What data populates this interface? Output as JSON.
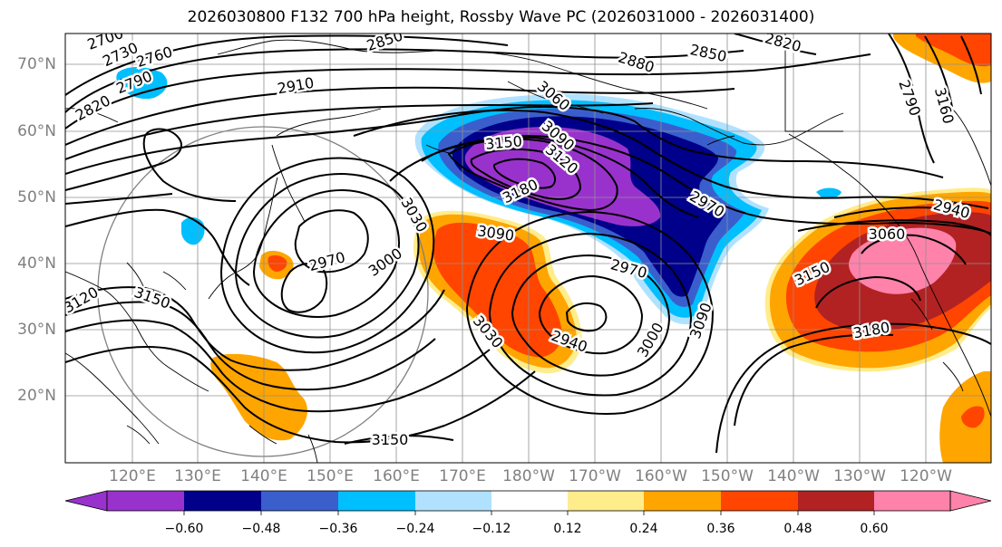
{
  "title": "2026030800 F132 700 hPa height, Rossby Wave PC (2026031000 - 2026031400)",
  "lat_labels": [
    "70°N",
    "60°N",
    "50°N",
    "40°N",
    "30°N",
    "20°N"
  ],
  "lon_labels": [
    "120°E",
    "130°E",
    "140°E",
    "150°E",
    "160°E",
    "170°E",
    "180°W",
    "170°W",
    "160°W",
    "150°W",
    "140°W",
    "130°W",
    "120°W"
  ],
  "contour_labels": [
    "2700",
    "2730",
    "2760",
    "2790",
    "2820",
    "2850",
    "2820",
    "2880",
    "2850",
    "2910",
    "3060",
    "3090",
    "3150",
    "3120",
    "3180",
    "2970",
    "3030",
    "3090",
    "2970",
    "3000",
    "2970",
    "3030",
    "2940",
    "3000",
    "3090",
    "3120",
    "3150",
    "3150",
    "2940",
    "3060",
    "3150",
    "3180",
    "2790",
    "3160"
  ],
  "colorbar": {
    "ticks": [
      "−0.60",
      "−0.48",
      "−0.36",
      "−0.24",
      "−0.12",
      "0.12",
      "0.24",
      "0.36",
      "0.48",
      "0.60"
    ],
    "colors": [
      "#9932cc",
      "#00008b",
      "#3a5fcd",
      "#00bfff",
      "#b0e2ff",
      "#ffffff",
      "#ffec8b",
      "#ffa500",
      "#ff4500",
      "#b22222",
      "#ff82ab"
    ]
  },
  "colors": {
    "contour": "#000000",
    "grid": "#909090",
    "coast": "#000000",
    "ring": "#808080"
  }
}
